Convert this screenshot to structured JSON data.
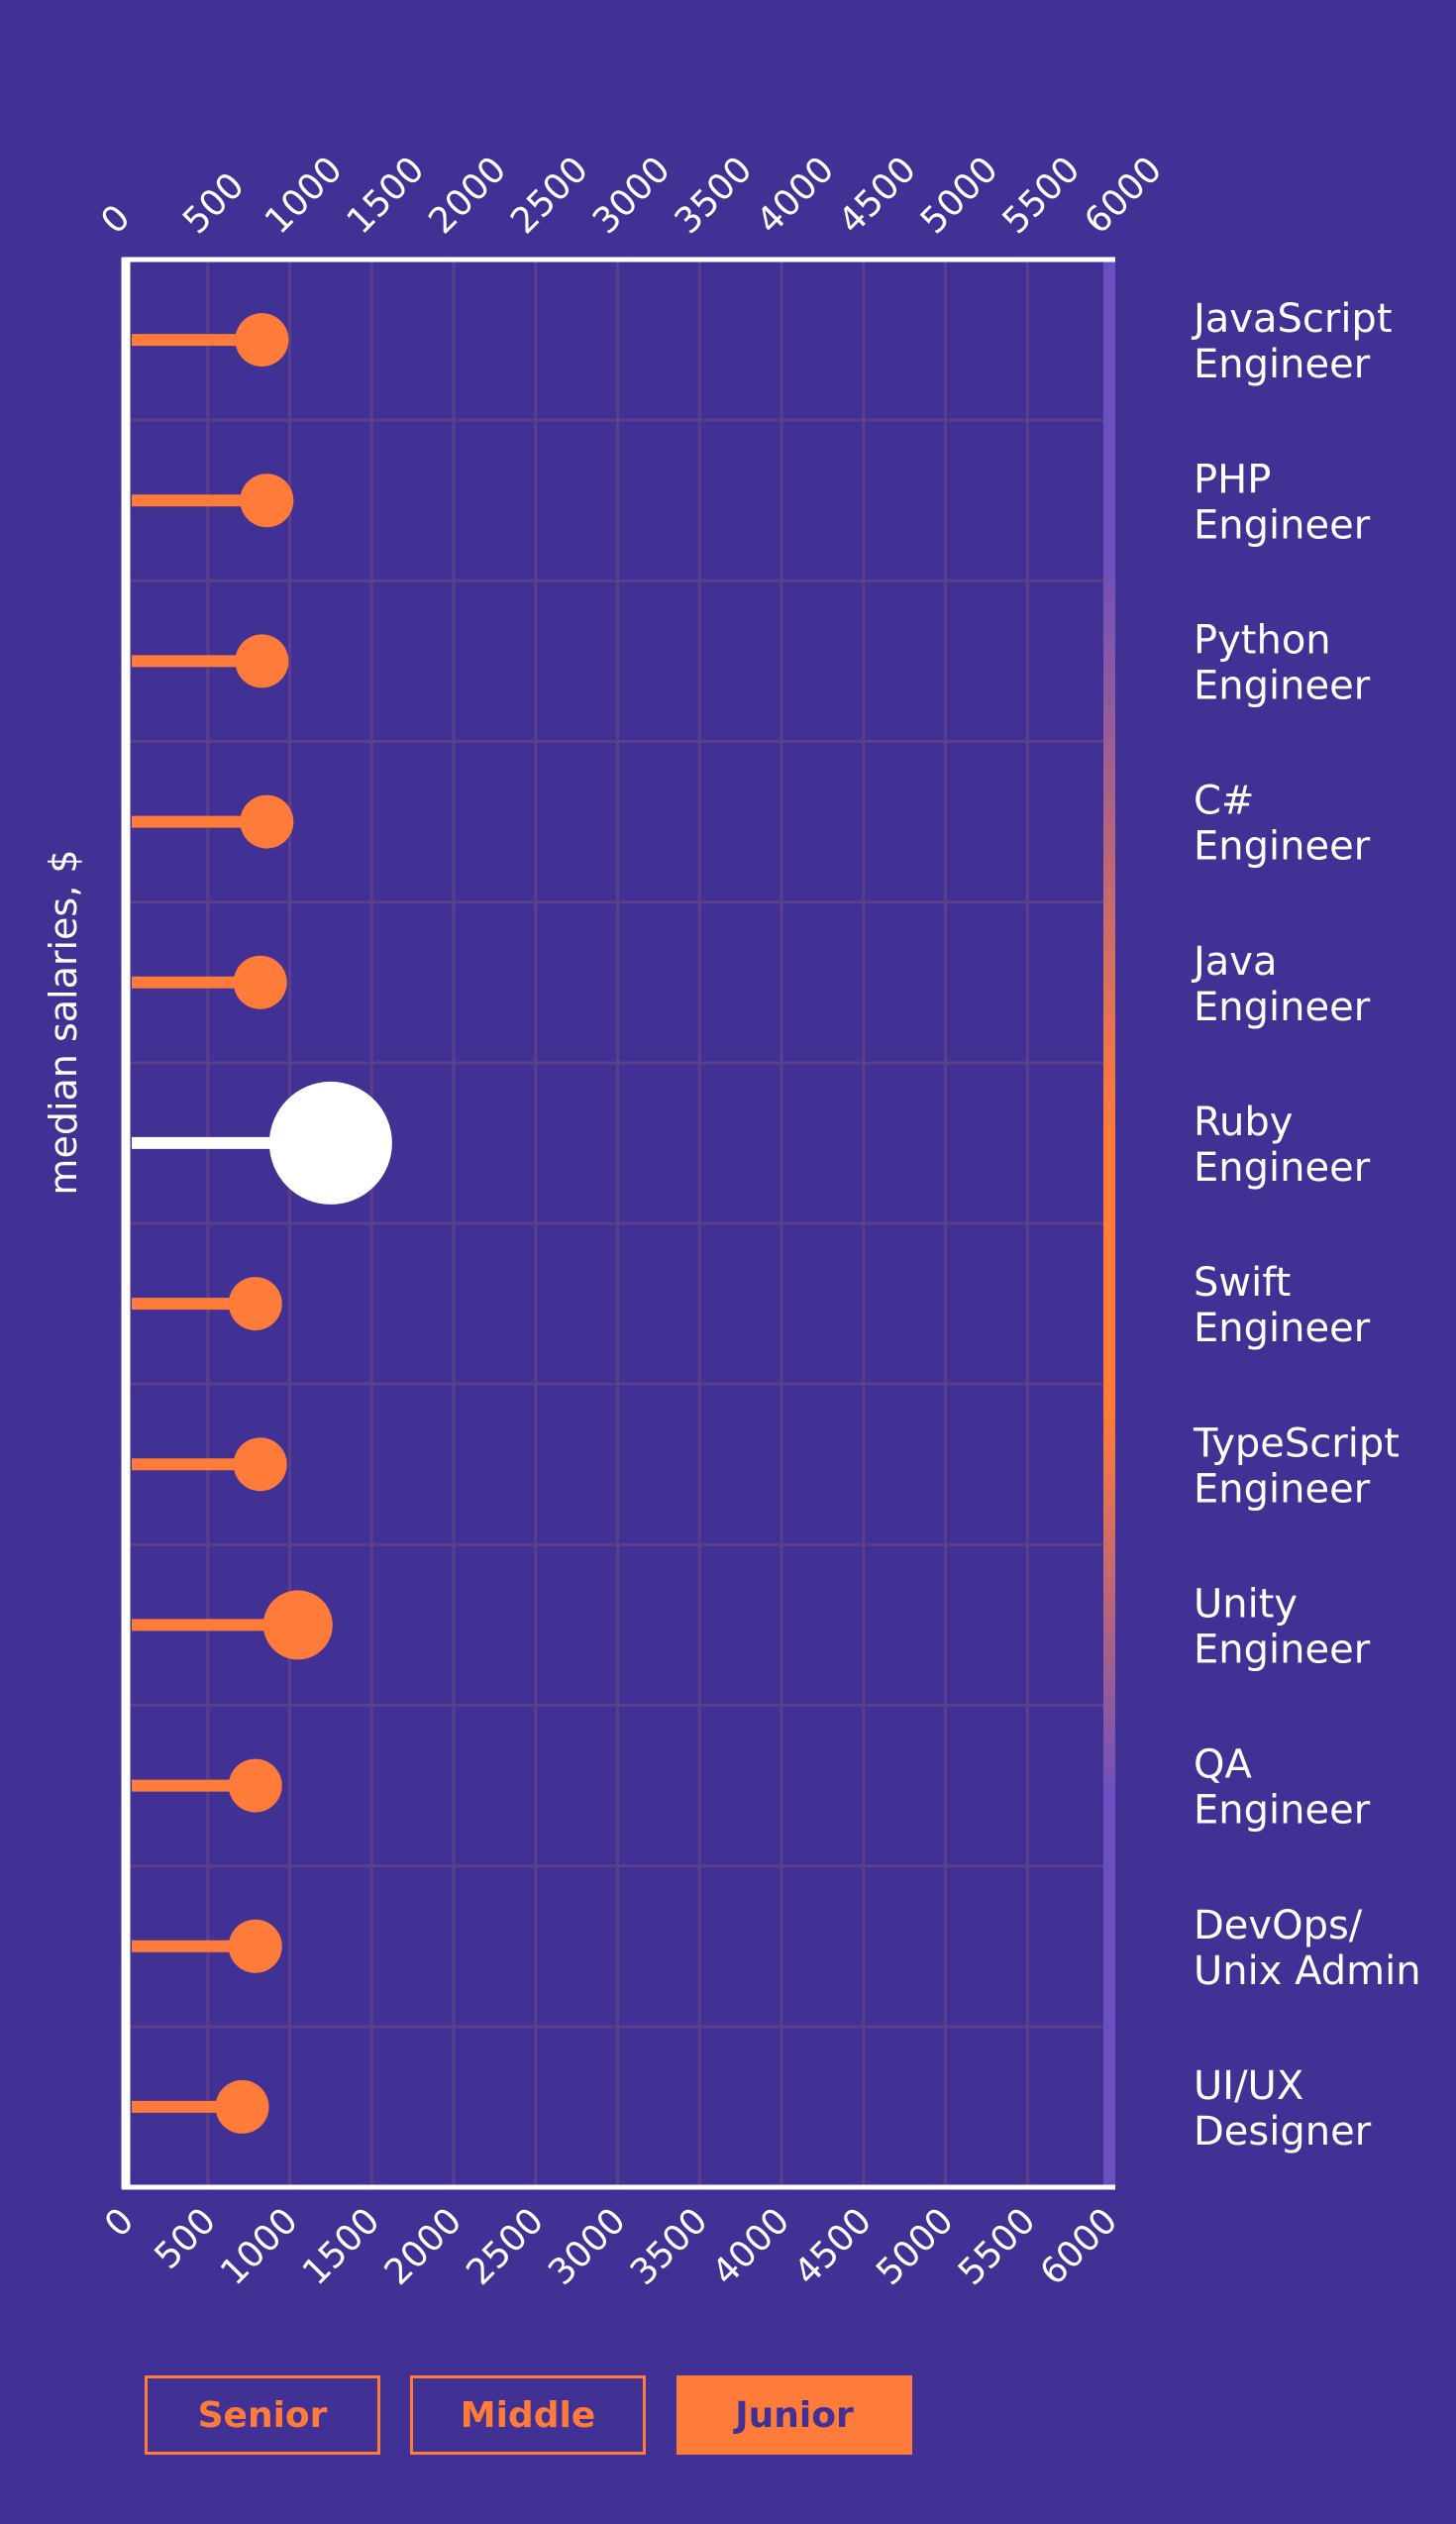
{
  "chart_data": {
    "type": "lollipop",
    "ylabel": "median salaries, $",
    "xlim": [
      0,
      6000
    ],
    "ticks": [
      "0",
      "500",
      "1000",
      "1500",
      "2000",
      "2500",
      "3000",
      "3500",
      "4000",
      "4500",
      "5000",
      "5500",
      "6000"
    ],
    "tick_values": [
      0,
      500,
      1000,
      1500,
      2000,
      2500,
      3000,
      3500,
      4000,
      4500,
      5000,
      5500,
      6000
    ],
    "categories": [
      [
        "JavaScript",
        "Engineer"
      ],
      [
        "PHP",
        "Engineer"
      ],
      [
        "Python",
        "Engineer"
      ],
      [
        "C#",
        "Engineer"
      ],
      [
        "Java",
        "Engineer"
      ],
      [
        "Ruby",
        "Engineer"
      ],
      [
        "Swift",
        "Engineer"
      ],
      [
        "TypeScript",
        "Engineer"
      ],
      [
        "Unity",
        "Engineer"
      ],
      [
        "QA",
        "Engineer"
      ],
      [
        "DevOps/",
        "Unix Admin"
      ],
      [
        "UI/UX",
        "Designer"
      ]
    ],
    "series": [
      {
        "name": "Junior",
        "values": [
          830,
          860,
          830,
          860,
          820,
          1250,
          790,
          820,
          1050,
          790,
          790,
          710
        ],
        "highlight_index": 5
      }
    ],
    "grid": true,
    "legend_position": "bottom-left"
  },
  "legend": {
    "items": [
      {
        "label": "Senior",
        "active": false
      },
      {
        "label": "Middle",
        "active": false
      },
      {
        "label": "Junior",
        "active": true
      }
    ]
  },
  "colors": {
    "background": "#413195",
    "accent": "#ff7b3a",
    "grid": "#5c3f8a",
    "highlight": "#ffffff",
    "text": "#ffffff"
  }
}
